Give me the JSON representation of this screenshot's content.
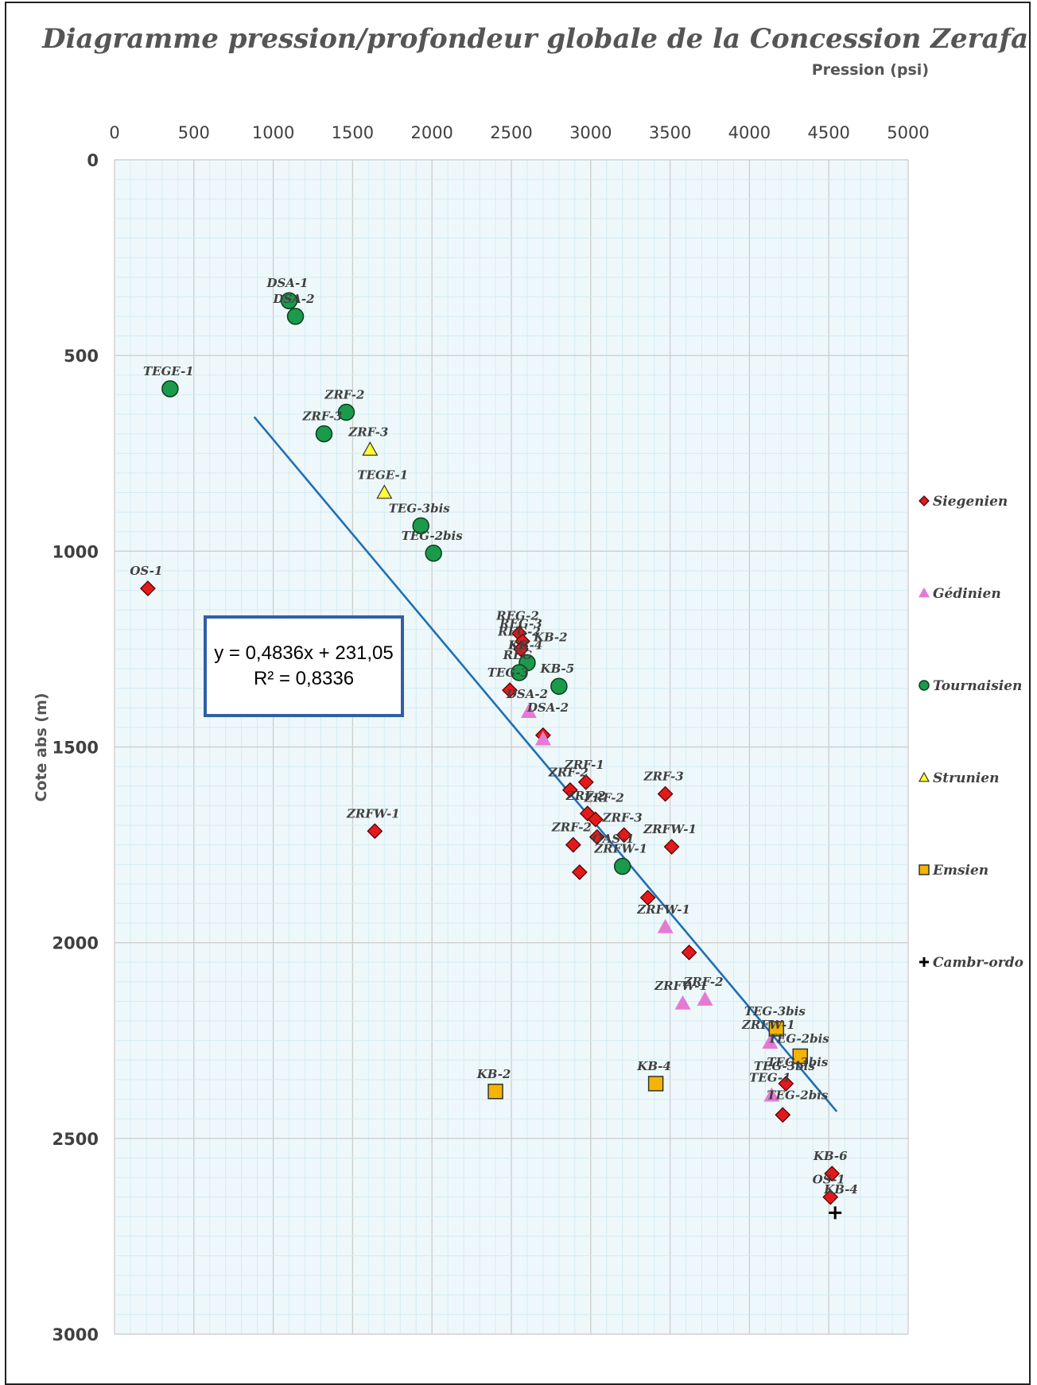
{
  "chart_data": {
    "type": "scatter",
    "title": "Diagramme pression/profondeur globale de la Concession Zerafa II",
    "xlabel": "Pression (psi)",
    "ylabel": "Cote abs (m)",
    "xlim": [
      0,
      5000
    ],
    "ylim": [
      0,
      3000
    ],
    "y_reversed": true,
    "x_axis_position": "top",
    "x_ticks": [
      "0",
      "500",
      "1000",
      "1500",
      "2000",
      "2500",
      "3000",
      "3500",
      "4000",
      "4500",
      "5000"
    ],
    "y_ticks": [
      "0",
      "500",
      "1000",
      "1500",
      "2000",
      "2500",
      "3000"
    ],
    "grid": true,
    "legend_position": "right",
    "trendline": {
      "equation": "y = 0,4836x + 231,05",
      "r2": "R² = 0,8336",
      "slope": 0.4836,
      "intercept": 231.05,
      "x_range": [
        880,
        4550
      ],
      "color": "#1f6fb4"
    },
    "series": [
      {
        "name": "Siegenien",
        "marker": "diamond",
        "color": "#e31a1c",
        "points": [
          {
            "x": 210,
            "y": 1095,
            "label": "OS-1"
          },
          {
            "x": 1640,
            "y": 1715,
            "label": "ZRFW-1"
          },
          {
            "x": 2550,
            "y": 1210,
            "label": "REG-2"
          },
          {
            "x": 2570,
            "y": 1230,
            "label": "REG-3"
          },
          {
            "x": 2560,
            "y": 1250,
            "label": "REG-2"
          },
          {
            "x": 2490,
            "y": 1355,
            "label": "TEG-3"
          },
          {
            "x": 2700,
            "y": 1470,
            "label": ""
          },
          {
            "x": 2870,
            "y": 1610,
            "label": "ZRF-2"
          },
          {
            "x": 2970,
            "y": 1590,
            "label": "ZRF-1"
          },
          {
            "x": 2980,
            "y": 1670,
            "label": "ZRF-2"
          },
          {
            "x": 3030,
            "y": 1685,
            "label": ""
          },
          {
            "x": 2890,
            "y": 1750,
            "label": "ZRF-2"
          },
          {
            "x": 3040,
            "y": 1730,
            "label": ""
          },
          {
            "x": 3210,
            "y": 1725,
            "label": "ZRF-3"
          },
          {
            "x": 2930,
            "y": 1820,
            "label": ""
          },
          {
            "x": 3470,
            "y": 1620,
            "label": "ZRF-3"
          },
          {
            "x": 3510,
            "y": 1755,
            "label": "ZRFW-1"
          },
          {
            "x": 3360,
            "y": 1885,
            "label": ""
          },
          {
            "x": 3620,
            "y": 2025,
            "label": ""
          },
          {
            "x": 4230,
            "y": 2360,
            "label": "TEG-3bis"
          },
          {
            "x": 4210,
            "y": 2440,
            "label": ""
          },
          {
            "x": 4520,
            "y": 2590,
            "label": "KB-6"
          },
          {
            "x": 4510,
            "y": 2650,
            "label": "OS-1"
          }
        ]
      },
      {
        "name": "Gédinien",
        "marker": "triangle",
        "color": "#e47ad6",
        "points": [
          {
            "x": 2610,
            "y": 1410,
            "label": "DSA-2"
          },
          {
            "x": 2700,
            "y": 1480,
            "label": ""
          },
          {
            "x": 3470,
            "y": 1960,
            "label": "ZRFW-1"
          },
          {
            "x": 3580,
            "y": 2155,
            "label": "ZRFW-1"
          },
          {
            "x": 3720,
            "y": 2145,
            "label": "ZRF-2"
          },
          {
            "x": 4130,
            "y": 2255,
            "label": "ZRFW-1"
          },
          {
            "x": 4140,
            "y": 2390,
            "label": "TEG-1"
          }
        ]
      },
      {
        "name": "Tournaisien",
        "marker": "circle",
        "color": "#1a9a4a",
        "points": [
          {
            "x": 1100,
            "y": 360,
            "label": "DSA-1"
          },
          {
            "x": 1140,
            "y": 400,
            "label": "DSA-2"
          },
          {
            "x": 350,
            "y": 585,
            "label": "TEGE-1"
          },
          {
            "x": 1460,
            "y": 645,
            "label": "ZRF-2"
          },
          {
            "x": 1320,
            "y": 700,
            "label": "ZRF-3"
          },
          {
            "x": 1930,
            "y": 935,
            "label": "TEG-3bis"
          },
          {
            "x": 2010,
            "y": 1005,
            "label": "TEG-2bis"
          },
          {
            "x": 2600,
            "y": 1285,
            "label": "KB-4"
          },
          {
            "x": 2550,
            "y": 1310,
            "label": "REG"
          },
          {
            "x": 2800,
            "y": 1345,
            "label": "KB-5"
          },
          {
            "x": 3200,
            "y": 1805,
            "label": "ZRFW-1"
          }
        ]
      },
      {
        "name": "Strunien",
        "marker": "triangle",
        "color": "#ffff33",
        "points": [
          {
            "x": 1610,
            "y": 740,
            "label": "ZRF-3"
          },
          {
            "x": 1700,
            "y": 850,
            "label": "TEGE-1"
          }
        ]
      },
      {
        "name": "Emsien",
        "marker": "square",
        "color": "#f5b400",
        "points": [
          {
            "x": 4170,
            "y": 2220,
            "label": "TEG-3bis"
          },
          {
            "x": 4320,
            "y": 2290,
            "label": "TEG-2bis"
          },
          {
            "x": 2400,
            "y": 2380,
            "label": "KB-2"
          },
          {
            "x": 3410,
            "y": 2360,
            "label": "KB-4"
          }
        ]
      },
      {
        "name": "Cambr-ordo",
        "marker": "plus",
        "color": "#000000",
        "points": [
          {
            "x": 4540,
            "y": 2690,
            "label": ""
          }
        ]
      }
    ],
    "extra_labels": [
      {
        "x": 2640,
        "y": 1230,
        "text": "KB-2"
      },
      {
        "x": 2480,
        "y": 1250,
        "text": "KB"
      },
      {
        "x": 2600,
        "y": 1410,
        "text": "DSA-2"
      },
      {
        "x": 2960,
        "y": 1640,
        "text": "ZRF-2"
      },
      {
        "x": 3010,
        "y": 1745,
        "text": "OAS-1"
      },
      {
        "x": 4110,
        "y": 2315,
        "text": "TEG-3bis"
      },
      {
        "x": 4110,
        "y": 2400,
        "text": "TEG-2bis"
      },
      {
        "x": 4470,
        "y": 2640,
        "text": "KB-4"
      }
    ]
  }
}
